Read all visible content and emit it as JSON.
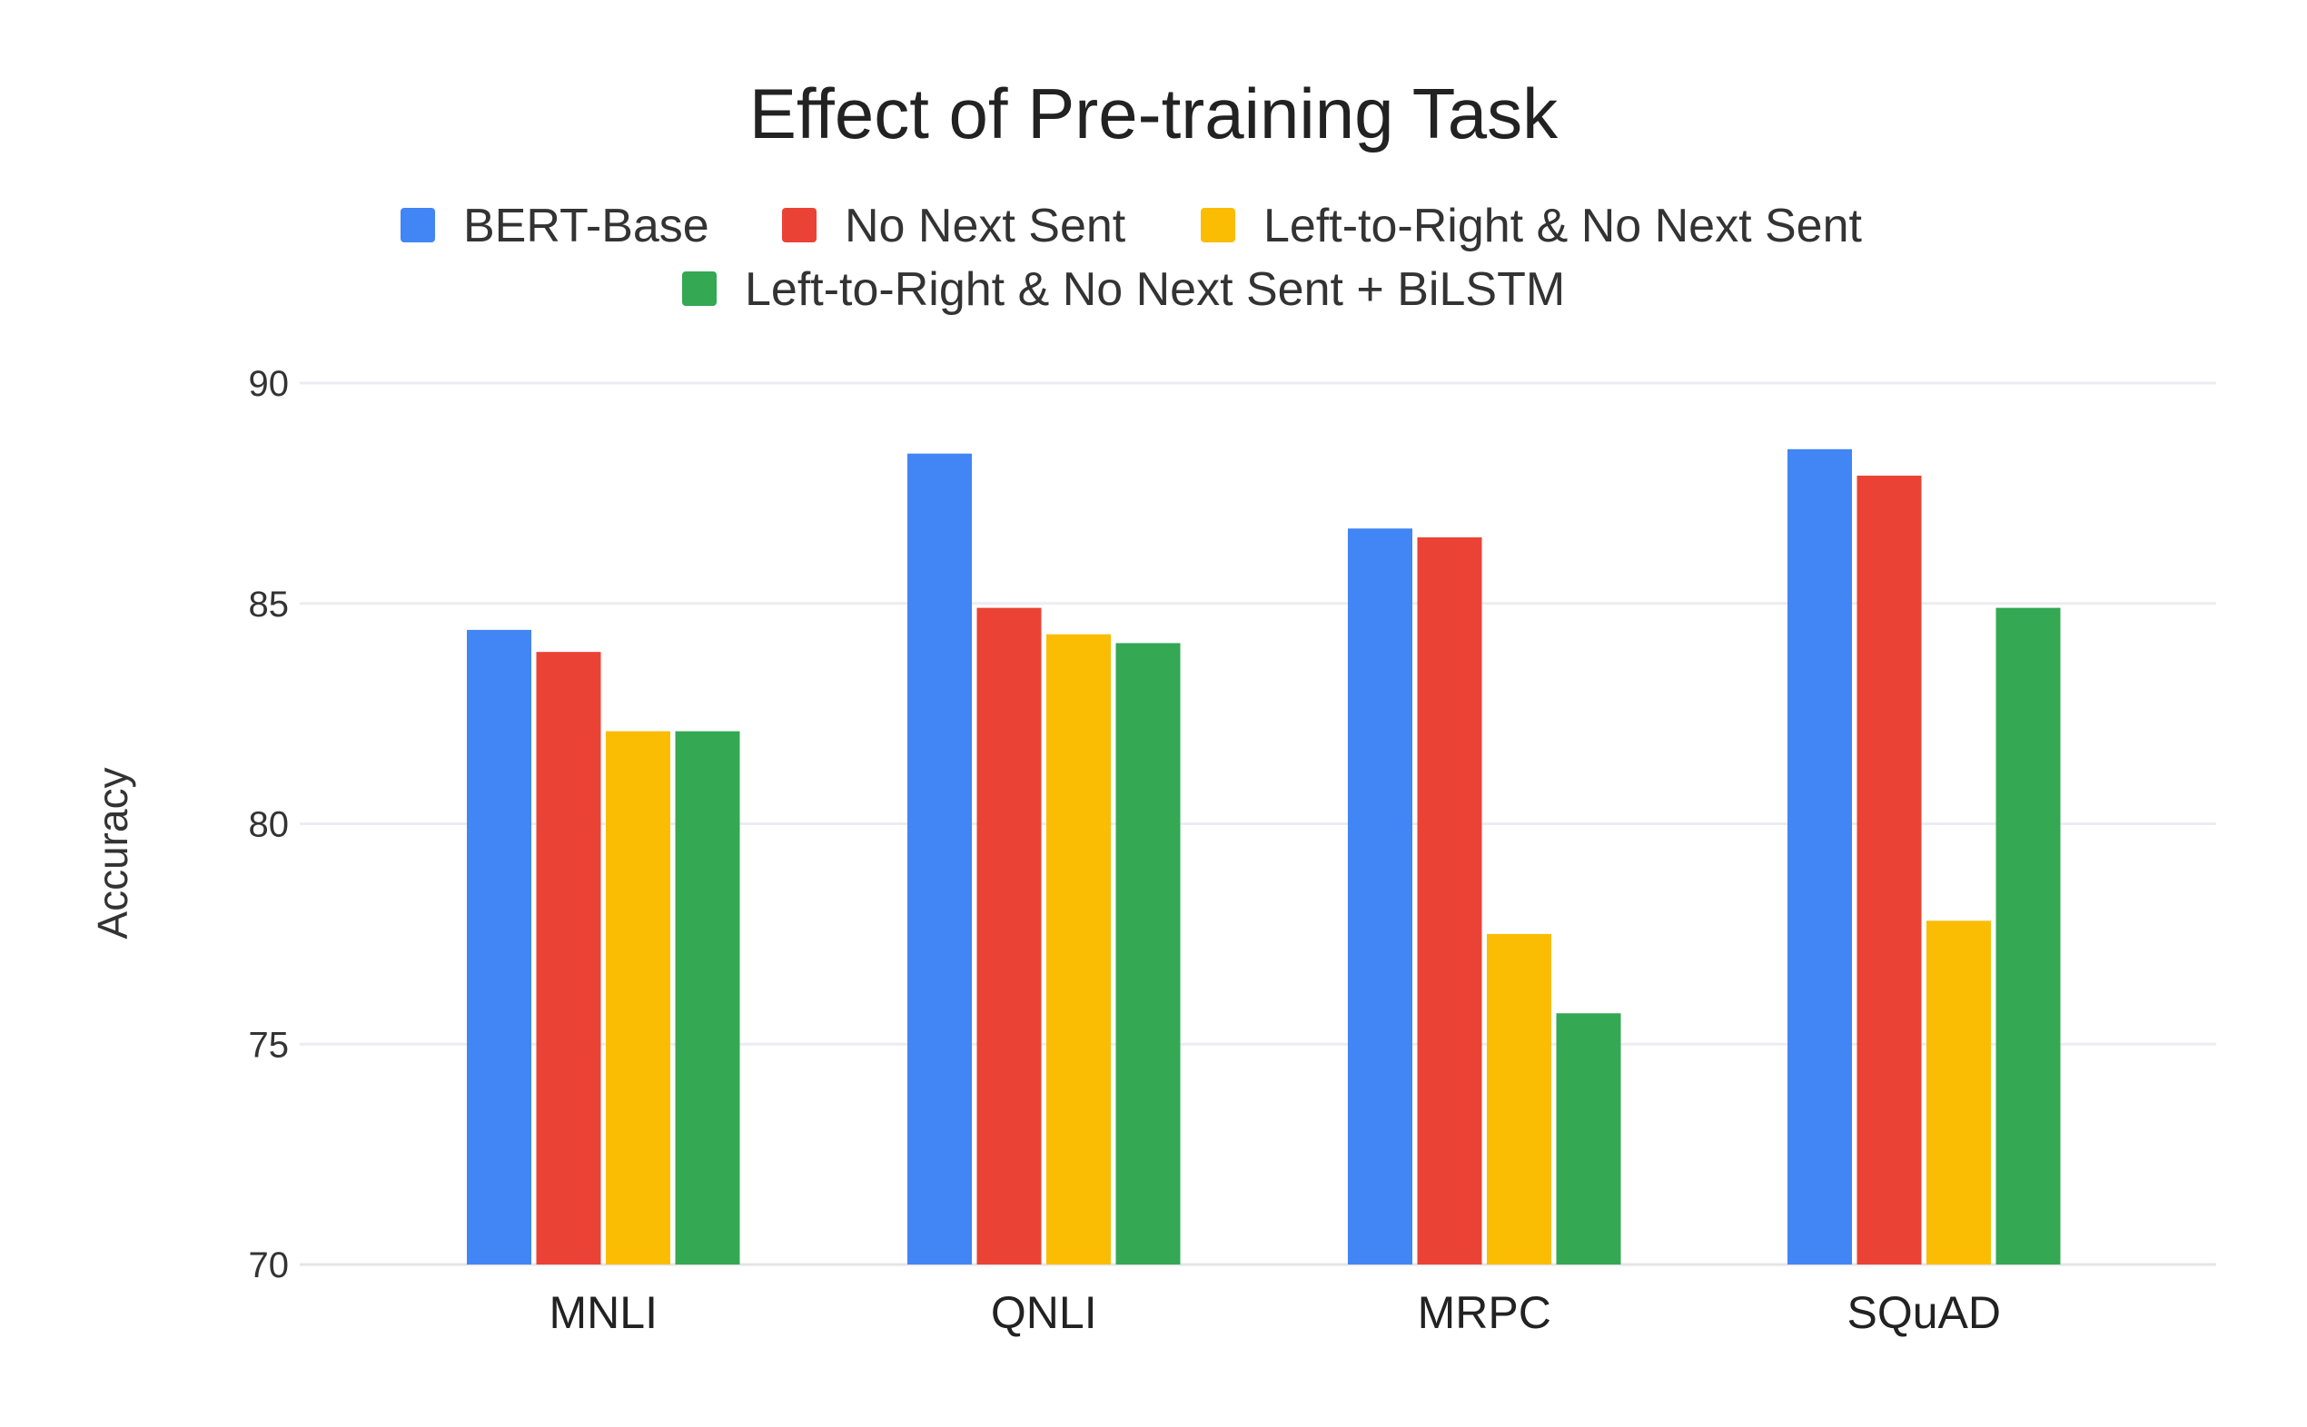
{
  "chart_data": {
    "type": "bar",
    "title": "Effect of Pre-training Task",
    "ylabel": "Accuracy",
    "xlabel": "",
    "categories": [
      "MNLI",
      "QNLI",
      "MRPC",
      "SQuAD"
    ],
    "ylim": [
      70,
      90
    ],
    "yticks": [
      "70",
      "75",
      "80",
      "85",
      "90"
    ],
    "grid": true,
    "legend_position": "top",
    "series": [
      {
        "name": "BERT-Base",
        "color": "#4285F4",
        "values": [
          84.4,
          88.4,
          86.7,
          88.5
        ]
      },
      {
        "name": "No Next Sent",
        "color": "#EA4335",
        "values": [
          83.9,
          84.9,
          86.5,
          87.9
        ]
      },
      {
        "name": "Left-to-Right & No Next Sent",
        "color": "#FBBC04",
        "values": [
          82.1,
          84.3,
          77.5,
          77.8
        ]
      },
      {
        "name": "Left-to-Right & No Next Sent + BiLSTM",
        "color": "#34A853",
        "values": [
          82.1,
          84.1,
          75.7,
          84.9
        ]
      }
    ]
  }
}
